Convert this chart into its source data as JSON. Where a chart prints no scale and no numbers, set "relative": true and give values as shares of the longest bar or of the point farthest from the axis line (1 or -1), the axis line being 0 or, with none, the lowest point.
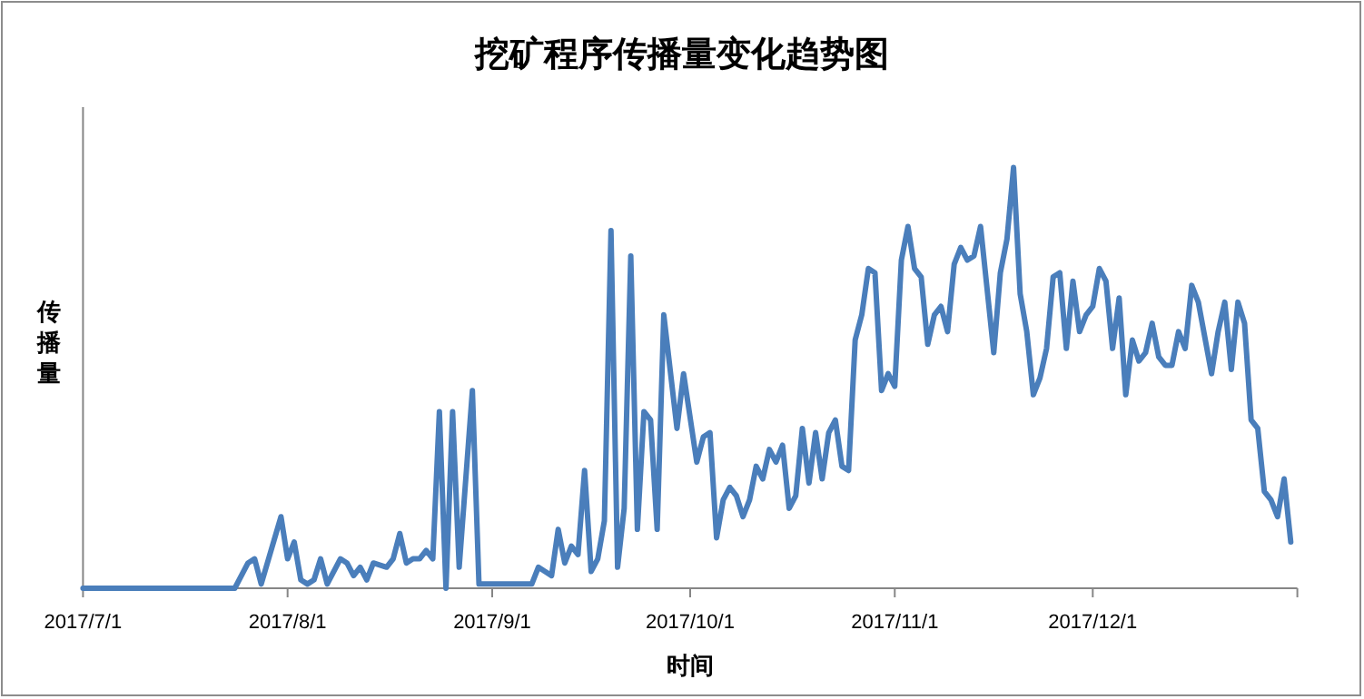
{
  "chart_data": {
    "type": "line",
    "title": "挖矿程序传播量变化趋势图",
    "xlabel": "时间",
    "ylabel": "传播量",
    "relative": true,
    "tick_labels": "x",
    "grid": false,
    "marker": "none",
    "line_style": "solid",
    "xlim": [
      "2017-07-01",
      "2018-01-01"
    ],
    "xticks": [
      {
        "value": "2017-07-01",
        "label": "2017/7/1"
      },
      {
        "value": "2017-08-01",
        "label": "2017/8/1"
      },
      {
        "value": "2017-09-01",
        "label": "2017/9/1"
      },
      {
        "value": "2017-10-01",
        "label": "2017/10/1"
      },
      {
        "value": "2017-11-01",
        "label": "2017/11/1"
      },
      {
        "value": "2017-12-01",
        "label": "2017/12/1"
      },
      {
        "value": "2018-01-01",
        "label": null
      }
    ],
    "x": [
      "2017-07-01",
      "2017-07-24",
      "2017-07-26",
      "2017-07-27",
      "2017-07-28",
      "2017-07-31",
      "2017-08-01",
      "2017-08-02",
      "2017-08-03",
      "2017-08-04",
      "2017-08-05",
      "2017-08-06",
      "2017-08-07",
      "2017-08-09",
      "2017-08-10",
      "2017-08-11",
      "2017-08-12",
      "2017-08-13",
      "2017-08-14",
      "2017-08-16",
      "2017-08-17",
      "2017-08-18",
      "2017-08-19",
      "2017-08-20",
      "2017-08-21",
      "2017-08-22",
      "2017-08-23",
      "2017-08-24",
      "2017-08-25",
      "2017-08-26",
      "2017-08-27",
      "2017-08-29",
      "2017-08-30",
      "2017-09-03",
      "2017-09-05",
      "2017-09-07",
      "2017-09-08",
      "2017-09-09",
      "2017-09-10",
      "2017-09-11",
      "2017-09-12",
      "2017-09-13",
      "2017-09-14",
      "2017-09-15",
      "2017-09-16",
      "2017-09-17",
      "2017-09-18",
      "2017-09-19",
      "2017-09-20",
      "2017-09-21",
      "2017-09-22",
      "2017-09-23",
      "2017-09-24",
      "2017-09-25",
      "2017-09-26",
      "2017-09-27",
      "2017-09-29",
      "2017-09-30",
      "2017-10-02",
      "2017-10-03",
      "2017-10-04",
      "2017-10-05",
      "2017-10-06",
      "2017-10-07",
      "2017-10-08",
      "2017-10-09",
      "2017-10-10",
      "2017-10-11",
      "2017-10-12",
      "2017-10-13",
      "2017-10-14",
      "2017-10-15",
      "2017-10-16",
      "2017-10-17",
      "2017-10-18",
      "2017-10-19",
      "2017-10-20",
      "2017-10-21",
      "2017-10-22",
      "2017-10-23",
      "2017-10-24",
      "2017-10-25",
      "2017-10-26",
      "2017-10-27",
      "2017-10-28",
      "2017-10-29",
      "2017-10-30",
      "2017-10-31",
      "2017-11-01",
      "2017-11-02",
      "2017-11-03",
      "2017-11-04",
      "2017-11-05",
      "2017-11-06",
      "2017-11-07",
      "2017-11-08",
      "2017-11-09",
      "2017-11-10",
      "2017-11-11",
      "2017-11-12",
      "2017-11-13",
      "2017-11-14",
      "2017-11-16",
      "2017-11-17",
      "2017-11-18",
      "2017-11-19",
      "2017-11-20",
      "2017-11-21",
      "2017-11-22",
      "2017-11-23",
      "2017-11-24",
      "2017-11-25",
      "2017-11-26",
      "2017-11-27",
      "2017-11-28",
      "2017-11-29",
      "2017-11-30",
      "2017-12-01",
      "2017-12-02",
      "2017-12-03",
      "2017-12-04",
      "2017-12-05",
      "2017-12-06",
      "2017-12-07",
      "2017-12-08",
      "2017-12-09",
      "2017-12-10",
      "2017-12-11",
      "2017-12-12",
      "2017-12-13",
      "2017-12-14",
      "2017-12-15",
      "2017-12-16",
      "2017-12-17",
      "2017-12-19",
      "2017-12-20",
      "2017-12-21",
      "2017-12-22",
      "2017-12-23",
      "2017-12-24",
      "2017-12-25",
      "2017-12-26",
      "2017-12-27",
      "2017-12-28",
      "2017-12-29",
      "2017-12-30",
      "2017-12-31"
    ],
    "series": [
      {
        "color": "#4a7ebb",
        "values": [
          0,
          0,
          0.06,
          0.07,
          0.01,
          0.17,
          0.07,
          0.11,
          0.02,
          0.01,
          0.02,
          0.07,
          0.01,
          0.07,
          0.06,
          0.03,
          0.05,
          0.02,
          0.06,
          0.05,
          0.07,
          0.13,
          0.06,
          0.07,
          0.07,
          0.09,
          0.07,
          0.42,
          0,
          0.42,
          0.05,
          0.47,
          0.01,
          0.01,
          0.01,
          0.01,
          0.05,
          0.04,
          0.03,
          0.14,
          0.06,
          0.1,
          0.08,
          0.28,
          0.04,
          0.07,
          0.16,
          0.85,
          0.05,
          0.19,
          0.79,
          0.14,
          0.42,
          0.4,
          0.14,
          0.65,
          0.38,
          0.51,
          0.3,
          0.36,
          0.37,
          0.12,
          0.21,
          0.24,
          0.22,
          0.17,
          0.21,
          0.29,
          0.26,
          0.33,
          0.3,
          0.34,
          0.19,
          0.22,
          0.38,
          0.25,
          0.37,
          0.26,
          0.37,
          0.4,
          0.29,
          0.28,
          0.59,
          0.65,
          0.76,
          0.75,
          0.47,
          0.51,
          0.48,
          0.78,
          0.86,
          0.76,
          0.74,
          0.58,
          0.65,
          0.67,
          0.61,
          0.77,
          0.81,
          0.78,
          0.79,
          0.86,
          0.56,
          0.75,
          0.83,
          1,
          0.7,
          0.61,
          0.46,
          0.5,
          0.57,
          0.74,
          0.75,
          0.57,
          0.73,
          0.61,
          0.65,
          0.67,
          0.76,
          0.73,
          0.57,
          0.69,
          0.46,
          0.59,
          0.54,
          0.56,
          0.63,
          0.55,
          0.53,
          0.53,
          0.61,
          0.57,
          0.72,
          0.68,
          0.51,
          0.61,
          0.68,
          0.52,
          0.68,
          0.63,
          0.4,
          0.38,
          0.23,
          0.21,
          0.17,
          0.26,
          0.11
        ]
      }
    ]
  }
}
